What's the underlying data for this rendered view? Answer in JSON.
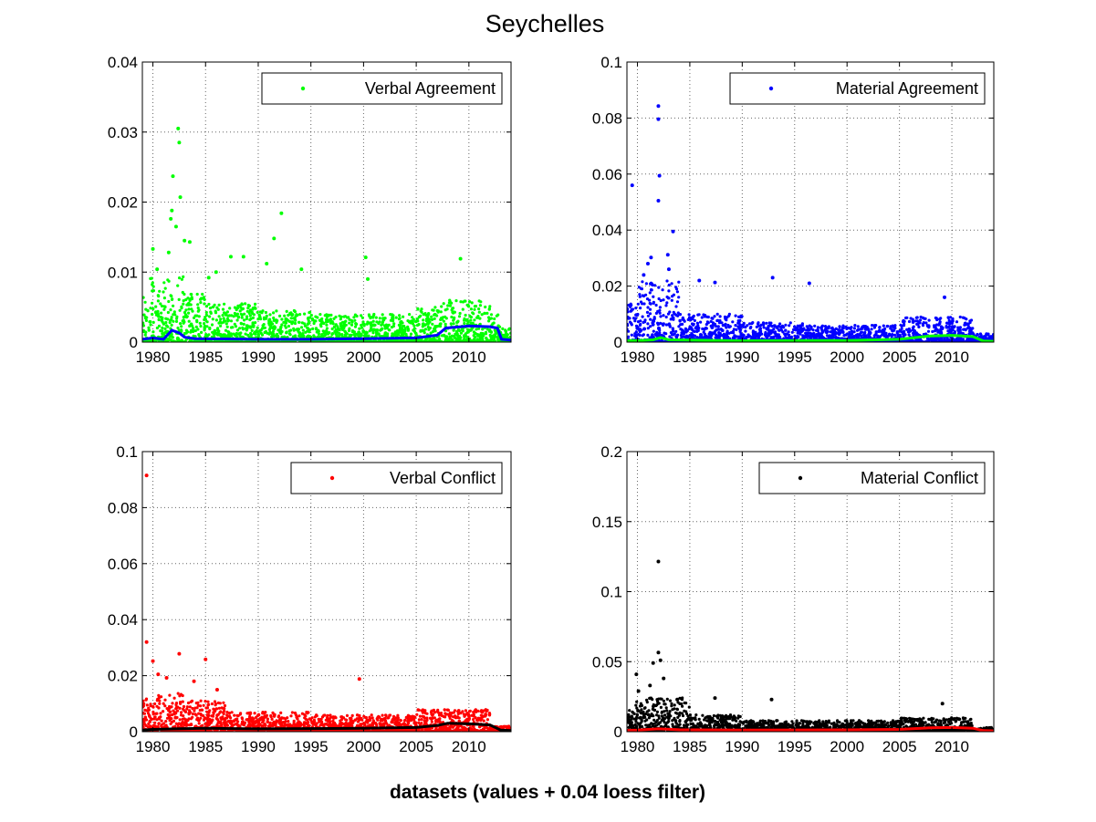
{
  "figure": {
    "title": "Seychelles",
    "xlabel": "datasets (values + 0.04 loess filter)"
  },
  "chart_data": [
    {
      "type": "scatter",
      "subplot": "top-left",
      "xlim": [
        1979,
        2014
      ],
      "ylim": [
        0,
        0.04
      ],
      "x_ticks": [
        1980,
        1985,
        1990,
        1995,
        2000,
        2005,
        2010
      ],
      "y_ticks": [
        0,
        0.01,
        0.02,
        0.03,
        0.04
      ],
      "y_tick_labels": [
        "0",
        "0.01",
        "0.02",
        "0.03",
        "0.04"
      ],
      "grid": true,
      "legend_position": "top-right",
      "series": [
        {
          "name": "Verbal Agreement",
          "color": "#00ff00",
          "marker": "dot",
          "points": [
            [
              1982.4,
              0.0305
            ],
            [
              1982.5,
              0.0285
            ],
            [
              1981.9,
              0.0237
            ],
            [
              1982.6,
              0.0207
            ],
            [
              1981.8,
              0.0188
            ],
            [
              1992.2,
              0.0184
            ],
            [
              1981.7,
              0.0176
            ],
            [
              1982.2,
              0.0165
            ],
            [
              1991.5,
              0.0148
            ],
            [
              1983.0,
              0.0145
            ],
            [
              1983.5,
              0.0143
            ],
            [
              1980.0,
              0.0133
            ],
            [
              1981.5,
              0.0128
            ],
            [
              1987.4,
              0.0122
            ],
            [
              1988.6,
              0.0122
            ],
            [
              2000.2,
              0.0121
            ],
            [
              2009.2,
              0.0119
            ],
            [
              1990.8,
              0.0112
            ],
            [
              1980.4,
              0.0104
            ],
            [
              1986.0,
              0.01
            ],
            [
              1994.1,
              0.0104
            ],
            [
              2000.4,
              0.009
            ],
            [
              1985.3,
              0.0092
            ]
          ],
          "density": [
            [
              1979,
              1980,
              0.0095
            ],
            [
              1980,
              1981,
              0.0085
            ],
            [
              1981,
              1983,
              0.0095
            ],
            [
              1983,
              1985,
              0.0075
            ],
            [
              1985,
              1990,
              0.0055
            ],
            [
              1990,
              1995,
              0.0045
            ],
            [
              1995,
              2005,
              0.004
            ],
            [
              2005,
              2007,
              0.005
            ],
            [
              2007,
              2012,
              0.006
            ],
            [
              2012,
              2013,
              0.004
            ],
            [
              2013,
              2014,
              0.002
            ]
          ]
        },
        {
          "name": "loess filter",
          "color": "#0000ff",
          "style": "line",
          "points": [
            [
              1979,
              0.0004
            ],
            [
              1980,
              0.0006
            ],
            [
              1981,
              0.0004
            ],
            [
              1981.8,
              0.0017
            ],
            [
              1982.5,
              0.0013
            ],
            [
              1983,
              0.0007
            ],
            [
              1984,
              0.0005
            ],
            [
              1990,
              0.0004
            ],
            [
              1995,
              0.0004
            ],
            [
              2000,
              0.0005
            ],
            [
              2005,
              0.0006
            ],
            [
              2007,
              0.001
            ],
            [
              2007.8,
              0.002
            ],
            [
              2008.5,
              0.0021
            ],
            [
              2010,
              0.0023
            ],
            [
              2012,
              0.0022
            ],
            [
              2012.7,
              0.002
            ],
            [
              2013.1,
              0.0004
            ],
            [
              2014,
              0.0003
            ]
          ]
        }
      ]
    },
    {
      "type": "scatter",
      "subplot": "top-right",
      "xlim": [
        1979,
        2014
      ],
      "ylim": [
        0,
        0.1
      ],
      "x_ticks": [
        1980,
        1985,
        1990,
        1995,
        2000,
        2005,
        2010
      ],
      "y_ticks": [
        0,
        0.02,
        0.04,
        0.06,
        0.08,
        0.1
      ],
      "y_tick_labels": [
        "0",
        "0.02",
        "0.04",
        "0.06",
        "0.08",
        "0.1"
      ],
      "grid": true,
      "legend_position": "top-right",
      "series": [
        {
          "name": "Material Agreement",
          "color": "#0000ff",
          "marker": "dot",
          "points": [
            [
              1982.0,
              0.0843
            ],
            [
              1982.0,
              0.0796
            ],
            [
              1982.1,
              0.0594
            ],
            [
              1979.5,
              0.056
            ],
            [
              1982.0,
              0.0505
            ],
            [
              1983.4,
              0.0395
            ],
            [
              1982.9,
              0.0312
            ],
            [
              1981.3,
              0.0302
            ],
            [
              1980.6,
              0.024
            ],
            [
              1985.9,
              0.022
            ],
            [
              1992.9,
              0.023
            ],
            [
              1996.4,
              0.021
            ],
            [
              1987.4,
              0.0213
            ],
            [
              2009.3,
              0.016
            ],
            [
              1981.0,
              0.028
            ],
            [
              1983.0,
              0.026
            ]
          ],
          "density": [
            [
              1979,
              1980,
              0.015
            ],
            [
              1980,
              1984,
              0.022
            ],
            [
              1984,
              1990,
              0.01
            ],
            [
              1990,
              1996,
              0.007
            ],
            [
              1996,
              2005,
              0.006
            ],
            [
              2005,
              2012,
              0.009
            ],
            [
              2012,
              2014,
              0.003
            ]
          ]
        },
        {
          "name": "loess filter",
          "color": "#00ff00",
          "style": "line",
          "points": [
            [
              1979,
              0.0006
            ],
            [
              1980,
              0.0006
            ],
            [
              1981.5,
              0.0008
            ],
            [
              1982.2,
              0.0016
            ],
            [
              1983,
              0.0008
            ],
            [
              1990,
              0.0005
            ],
            [
              2000,
              0.0006
            ],
            [
              2005,
              0.001
            ],
            [
              2008,
              0.0022
            ],
            [
              2010,
              0.0024
            ],
            [
              2012,
              0.002
            ],
            [
              2013,
              0.0004
            ],
            [
              2014,
              0.0003
            ]
          ]
        }
      ]
    },
    {
      "type": "scatter",
      "subplot": "bottom-left",
      "xlim": [
        1979,
        2014
      ],
      "ylim": [
        0,
        0.1
      ],
      "x_ticks": [
        1980,
        1985,
        1990,
        1995,
        2000,
        2005,
        2010
      ],
      "y_ticks": [
        0,
        0.02,
        0.04,
        0.06,
        0.08,
        0.1
      ],
      "y_tick_labels": [
        "0",
        "0.02",
        "0.04",
        "0.06",
        "0.08",
        "0.1"
      ],
      "grid": true,
      "legend_position": "top-right",
      "series": [
        {
          "name": "Verbal Conflict",
          "color": "#ff0000",
          "marker": "dot",
          "points": [
            [
              1979.4,
              0.0915
            ],
            [
              1979.4,
              0.032
            ],
            [
              1982.5,
              0.0278
            ],
            [
              1985.0,
              0.0258
            ],
            [
              1980.0,
              0.0252
            ],
            [
              1980.5,
              0.0205
            ],
            [
              1999.6,
              0.0188
            ],
            [
              1983.9,
              0.018
            ],
            [
              1981.3,
              0.0192
            ],
            [
              1986.1,
              0.015
            ]
          ],
          "density": [
            [
              1979,
              1980,
              0.012
            ],
            [
              1980,
              1983,
              0.014
            ],
            [
              1983,
              1987,
              0.011
            ],
            [
              1987,
              1995,
              0.007
            ],
            [
              1995,
              2005,
              0.006
            ],
            [
              2005,
              2012,
              0.008
            ],
            [
              2012,
              2014,
              0.002
            ]
          ]
        },
        {
          "name": "loess filter",
          "color": "#000000",
          "style": "line",
          "points": [
            [
              1979,
              0.0006
            ],
            [
              1980,
              0.0008
            ],
            [
              1982,
              0.001
            ],
            [
              1985,
              0.0012
            ],
            [
              1990,
              0.001
            ],
            [
              1995,
              0.0011
            ],
            [
              2000,
              0.0012
            ],
            [
              2005,
              0.0015
            ],
            [
              2007,
              0.0022
            ],
            [
              2008,
              0.003
            ],
            [
              2010,
              0.0028
            ],
            [
              2012,
              0.0024
            ],
            [
              2013,
              0.0006
            ],
            [
              2014,
              0.0004
            ]
          ]
        }
      ]
    },
    {
      "type": "scatter",
      "subplot": "bottom-right",
      "xlim": [
        1979,
        2014
      ],
      "ylim": [
        0,
        0.2
      ],
      "x_ticks": [
        1980,
        1985,
        1990,
        1995,
        2000,
        2005,
        2010
      ],
      "y_ticks": [
        0,
        0.05,
        0.1,
        0.15,
        0.2
      ],
      "y_tick_labels": [
        "0",
        "0.05",
        "0.1",
        "0.15",
        "0.2"
      ],
      "grid": true,
      "legend_position": "top-right",
      "series": [
        {
          "name": "Material Conflict",
          "color": "#000000",
          "marker": "dot",
          "points": [
            [
              1982.0,
              0.1215
            ],
            [
              1982.0,
              0.0565
            ],
            [
              1982.2,
              0.051
            ],
            [
              1981.5,
              0.049
            ],
            [
              1979.9,
              0.041
            ],
            [
              1982.5,
              0.038
            ],
            [
              1980.1,
              0.029
            ],
            [
              1987.4,
              0.024
            ],
            [
              1992.8,
              0.023
            ],
            [
              2009.1,
              0.02
            ],
            [
              1983.8,
              0.023
            ],
            [
              1981.2,
              0.033
            ]
          ],
          "density": [
            [
              1979,
              1980,
              0.022
            ],
            [
              1980,
              1985,
              0.025
            ],
            [
              1985,
              1990,
              0.012
            ],
            [
              1990,
              2005,
              0.008
            ],
            [
              2005,
              2012,
              0.01
            ],
            [
              2012,
              2014,
              0.003
            ]
          ]
        },
        {
          "name": "loess filter",
          "color": "#ff0000",
          "style": "line",
          "points": [
            [
              1979,
              0.001
            ],
            [
              1980,
              0.0012
            ],
            [
              1982,
              0.002
            ],
            [
              1984,
              0.0014
            ],
            [
              1990,
              0.0012
            ],
            [
              2000,
              0.0013
            ],
            [
              2005,
              0.0016
            ],
            [
              2008,
              0.0028
            ],
            [
              2010,
              0.003
            ],
            [
              2012,
              0.0025
            ],
            [
              2013,
              0.0008
            ],
            [
              2014,
              0.0006
            ]
          ]
        }
      ]
    }
  ]
}
